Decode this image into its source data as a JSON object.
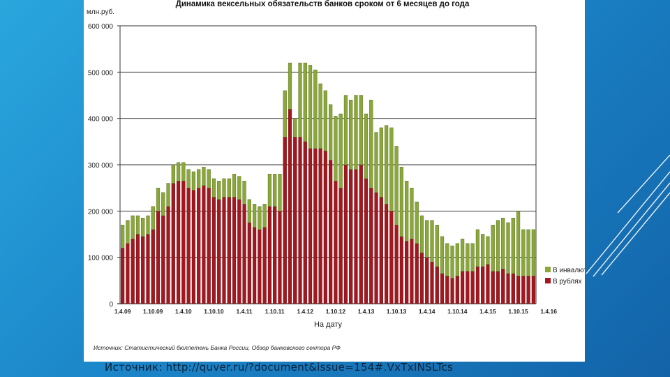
{
  "slide": {
    "source_caption": "Источник: http://quver.ru/?document&issue=154#.VxTxINSLTcs"
  },
  "colors": {
    "foreign_currency": "#8aa83a",
    "rubles": "#a3171f",
    "grid": "#333333",
    "background_accent": "#1b86c9"
  },
  "chart_data": {
    "type": "bar",
    "stacked": true,
    "title": "Динамика вексельных обязательств банков сроком от 6 месяцев до года",
    "ylabel": "млн.руб.",
    "xlabel": "На дату",
    "ylim": [
      0,
      600000
    ],
    "yticks": [
      "0",
      "100 000",
      "200 000",
      "300 000",
      "400 000",
      "500 000",
      "600 000"
    ],
    "xticks": [
      "1.4.09",
      "1.10.09",
      "1.4.10",
      "1.10.10",
      "1.4.11",
      "1.10.11",
      "1.4.12",
      "1.10.12",
      "1.4.13",
      "1.10.13",
      "1.4.14",
      "1.10.14",
      "1.4.15",
      "1.10.15",
      "1.4.16"
    ],
    "grid": true,
    "legend_position": "right",
    "source": "Источник: Статистический бюллетень Банка России, Обзор банковского сектора РФ",
    "series": [
      {
        "name": "В инвалюте",
        "values": [
          50,
          50,
          50,
          40,
          40,
          40,
          50,
          50,
          50,
          50,
          40,
          40,
          40,
          40,
          40,
          40,
          40,
          40,
          40,
          40,
          40,
          40,
          50,
          50,
          50,
          50,
          50,
          50,
          50,
          70,
          70,
          80,
          100,
          100,
          40,
          160,
          170,
          180,
          170,
          140,
          130,
          120,
          140,
          160,
          150,
          150,
          160,
          150,
          140,
          190,
          130,
          150,
          170,
          180,
          170,
          150,
          130,
          110,
          90,
          80,
          80,
          90,
          90,
          80,
          70,
          70,
          70,
          70,
          60,
          60,
          80,
          70,
          60,
          100,
          110,
          110,
          110,
          120,
          140,
          100,
          100,
          100
        ]
      },
      {
        "name": "В рублях",
        "values": [
          120,
          130,
          140,
          150,
          145,
          150,
          160,
          200,
          190,
          210,
          260,
          265,
          265,
          250,
          245,
          250,
          255,
          250,
          230,
          225,
          230,
          230,
          230,
          225,
          215,
          175,
          165,
          160,
          165,
          210,
          210,
          200,
          360,
          420,
          360,
          360,
          350,
          335,
          335,
          335,
          330,
          310,
          265,
          250,
          300,
          290,
          290,
          300,
          270,
          250,
          240,
          230,
          215,
          200,
          170,
          145,
          135,
          140,
          130,
          110,
          100,
          90,
          80,
          65,
          60,
          55,
          60,
          70,
          70,
          70,
          80,
          80,
          85,
          70,
          70,
          75,
          65,
          65,
          60,
          60,
          60,
          60
        ]
      }
    ],
    "value_unit_note": "values in thousands of млн.руб. scale ticks divided by 1000"
  }
}
